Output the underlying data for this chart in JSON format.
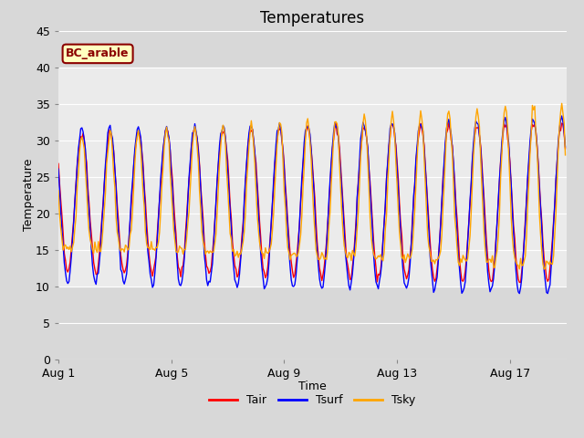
{
  "title": "Temperatures",
  "xlabel": "Time",
  "ylabel": "Temperature",
  "ylim": [
    0,
    45
  ],
  "yticks": [
    0,
    5,
    10,
    15,
    20,
    25,
    30,
    35,
    40,
    45
  ],
  "x_tick_days": [
    1,
    5,
    9,
    13,
    17
  ],
  "x_tick_labels": [
    "Aug 1",
    "Aug 5",
    "Aug 9",
    "Aug 13",
    "Aug 17"
  ],
  "legend_labels": [
    "Tair",
    "Tsurf",
    "Tsky"
  ],
  "legend_colors": [
    "#FF0000",
    "#0000FF",
    "#FFA500"
  ],
  "annotation_text": "BC_arable",
  "annotation_color": "#8B0000",
  "annotation_bg": "#FFFFC0",
  "bg_color_outer": "#D8D8D8",
  "bg_color_inner_mid": "#EBEBEB",
  "bg_color_inner_dark": "#D8D8D8",
  "grid_color": "#FFFFFF",
  "title_fontsize": 12,
  "axis_label_fontsize": 9,
  "tick_fontsize": 9,
  "legend_fontsize": 9,
  "n_days": 18,
  "band_light_ymin": 10,
  "band_light_ymax": 40
}
